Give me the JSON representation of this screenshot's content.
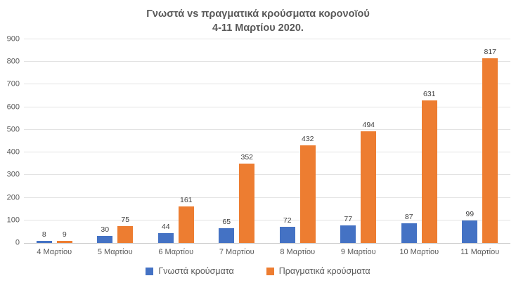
{
  "chart_data": {
    "type": "bar",
    "title": "Γνωστά vs πραγματικά κρούσματα κορονοϊού",
    "subtitle": "4-11 Μαρτίου 2020.",
    "categories": [
      "4 Μαρτίου",
      "5 Μαρτίου",
      "6 Μαρτίου",
      "7 Μαρτίου",
      "8 Μαρτίου",
      "9 Μαρτίου",
      "10 Μαρτίου",
      "11 Μαρτίου"
    ],
    "series": [
      {
        "name": "Γνωστά κρούσματα",
        "color": "#4472C4",
        "values": [
          8,
          30,
          44,
          65,
          72,
          77,
          87,
          99
        ]
      },
      {
        "name": "Πραγματικά κρούσματα",
        "color": "#ED7D31",
        "values": [
          9,
          75,
          161,
          352,
          432,
          494,
          631,
          817
        ]
      }
    ],
    "ylim": [
      0,
      900
    ],
    "yticks": [
      0,
      100,
      200,
      300,
      400,
      500,
      600,
      700,
      800,
      900
    ],
    "xlabel": "",
    "ylabel": "",
    "grid": "horizontal",
    "legend_position": "bottom",
    "data_labels": true
  },
  "style": {
    "grid_color": "#e3e3e3",
    "axis_line_color": "#c9c9c9",
    "text_color": "#595959",
    "value_label_color": "#404040",
    "background": "#ffffff"
  }
}
